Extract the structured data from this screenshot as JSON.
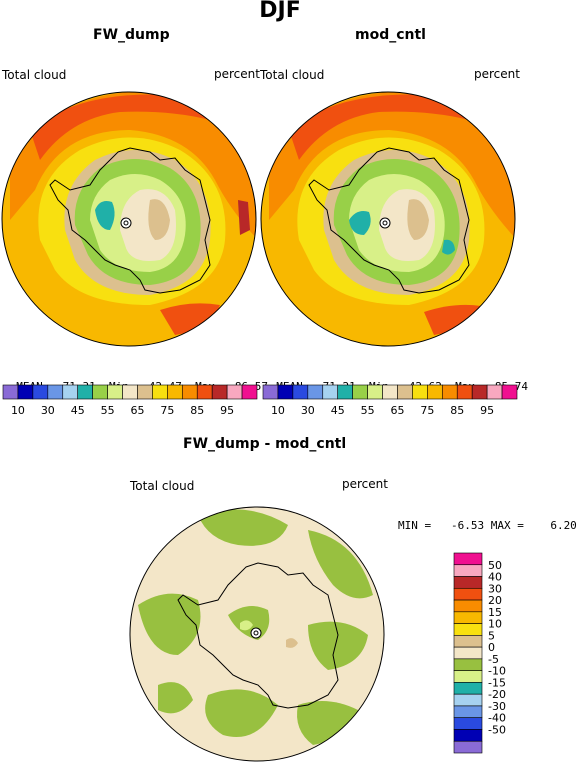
{
  "figure_title": "DJF",
  "colors": {
    "scale": [
      "#8a6bd6",
      "#0000b4",
      "#2a4ae0",
      "#6a96e6",
      "#a6d2f0",
      "#20b0a8",
      "#98d048",
      "#d8f088",
      "#f3e6c8",
      "#dcc08e",
      "#f8e010",
      "#f8b800",
      "#f88c00",
      "#f05010",
      "#b82828",
      "#f8a8c0",
      "#f01090"
    ],
    "diff_scale": [
      "#8a6bd6",
      "#0000b4",
      "#2a4ae0",
      "#6a96e6",
      "#a6d2f0",
      "#20b0a8",
      "#d8f088",
      "#98c040",
      "#f3e6c8",
      "#dcc08e",
      "#f8e010",
      "#f8b800",
      "#f88c00",
      "#f05010",
      "#b82828",
      "#f8a8c0",
      "#f01090"
    ]
  },
  "panels": [
    {
      "title": "FW_dump",
      "left_label": "Total cloud",
      "right_label": "percent",
      "stats": {
        "mean_label": "MEAN=",
        "mean": "71.31",
        "min_label": "Min=",
        "min": "42.47",
        "max_label": "Max=",
        "max": "86.57"
      },
      "colorbar_ticks": [
        "10",
        "30",
        "45",
        "55",
        "65",
        "75",
        "85",
        "95"
      ]
    },
    {
      "title": "mod_cntl",
      "left_label": "Total cloud",
      "right_label": "percent",
      "stats": {
        "mean_label": "MEAN=",
        "mean": "71.21",
        "min_label": "Min=",
        "min": "42.62",
        "max_label": "Max=",
        "max": "85.74"
      },
      "colorbar_ticks": [
        "10",
        "30",
        "45",
        "55",
        "65",
        "75",
        "85",
        "95"
      ]
    }
  ],
  "diff_panel": {
    "title": "FW_dump - mod_cntl",
    "left_label": "Total cloud",
    "right_label": "percent",
    "minmax": "MIN =   -6.53 MAX =    6.20",
    "colorbar_ticks": [
      "50",
      "40",
      "30",
      "20",
      "15",
      "10",
      "5",
      "0",
      "-5",
      "-10",
      "-15",
      "-20",
      "-30",
      "-40",
      "-50"
    ]
  },
  "chart_data": [
    {
      "type": "heatmap",
      "projection": "polar stereographic",
      "title": "FW_dump",
      "variable": "Total cloud",
      "units": "percent",
      "mean": 71.31,
      "min": 42.47,
      "max": 86.57,
      "levels": [
        10,
        20,
        30,
        40,
        45,
        50,
        55,
        60,
        65,
        70,
        75,
        80,
        85,
        90,
        95
      ]
    },
    {
      "type": "heatmap",
      "projection": "polar stereographic",
      "title": "mod_cntl",
      "variable": "Total cloud",
      "units": "percent",
      "mean": 71.21,
      "min": 42.62,
      "max": 85.74,
      "levels": [
        10,
        20,
        30,
        40,
        45,
        50,
        55,
        60,
        65,
        70,
        75,
        80,
        85,
        90,
        95
      ]
    },
    {
      "type": "heatmap",
      "projection": "polar stereographic",
      "title": "FW_dump - mod_cntl",
      "variable": "Total cloud",
      "units": "percent",
      "min": -6.53,
      "max": 6.2,
      "levels": [
        -50,
        -40,
        -30,
        -20,
        -15,
        -10,
        -5,
        0,
        5,
        10,
        15,
        20,
        30,
        40,
        50
      ]
    }
  ]
}
